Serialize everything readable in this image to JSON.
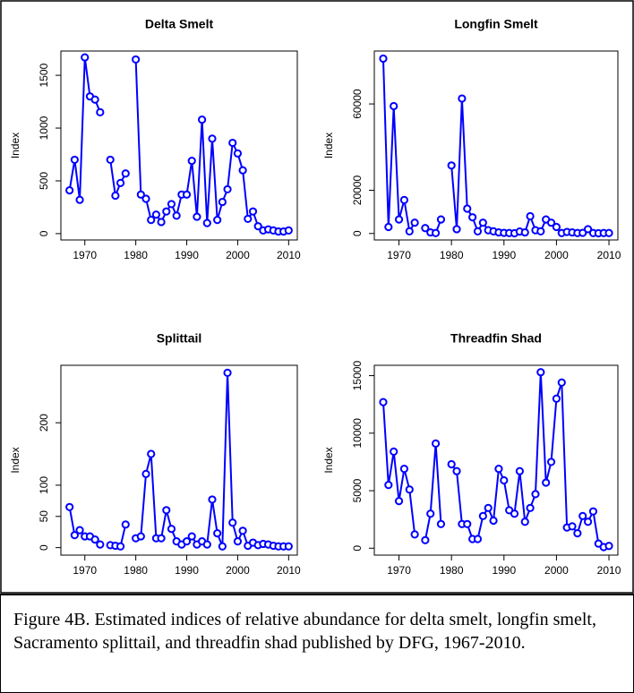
{
  "chart_data": [
    {
      "type": "line",
      "title": "Delta Smelt",
      "ylabel": "Index",
      "color": "#0000ff",
      "x": [
        1967,
        1968,
        1969,
        1970,
        1971,
        1972,
        1973,
        1974,
        1975,
        1976,
        1977,
        1978,
        1979,
        1980,
        1981,
        1982,
        1983,
        1984,
        1985,
        1986,
        1987,
        1988,
        1989,
        1990,
        1991,
        1992,
        1993,
        1994,
        1995,
        1996,
        1997,
        1998,
        1999,
        2000,
        2001,
        2002,
        2003,
        2004,
        2005,
        2006,
        2007,
        2008,
        2009,
        2010
      ],
      "values": [
        410,
        700,
        320,
        1670,
        1300,
        1270,
        1150,
        null,
        700,
        360,
        480,
        570,
        null,
        1650,
        370,
        330,
        130,
        180,
        110,
        210,
        280,
        170,
        370,
        370,
        690,
        160,
        1080,
        100,
        900,
        130,
        300,
        420,
        860,
        760,
        600,
        140,
        210,
        70,
        30,
        40,
        30,
        20,
        20,
        30
      ],
      "xlim": [
        1965.3,
        2011.7
      ],
      "ylim": [
        -60,
        1730
      ],
      "xticks": [
        1970,
        1980,
        1990,
        2000,
        2010
      ],
      "yticks": [
        0,
        500,
        1000,
        1500
      ]
    },
    {
      "type": "line",
      "title": "Longfin Smelt",
      "ylabel": "Index",
      "color": "#0000ff",
      "x": [
        1967,
        1968,
        1969,
        1970,
        1971,
        1972,
        1973,
        1974,
        1975,
        1976,
        1977,
        1978,
        1979,
        1980,
        1981,
        1982,
        1983,
        1984,
        1985,
        1986,
        1987,
        1988,
        1989,
        1990,
        1991,
        1992,
        1993,
        1994,
        1995,
        1996,
        1997,
        1998,
        1999,
        2000,
        2001,
        2002,
        2003,
        2004,
        2005,
        2006,
        2007,
        2008,
        2009,
        2010
      ],
      "values": [
        81000,
        3000,
        59000,
        6500,
        15500,
        1000,
        5000,
        null,
        2500,
        500,
        200,
        6500,
        null,
        31500,
        2000,
        62500,
        11500,
        7500,
        1000,
        5000,
        1500,
        1000,
        500,
        300,
        200,
        100,
        900,
        500,
        8000,
        1500,
        1000,
        6500,
        5000,
        3000,
        200,
        700,
        500,
        200,
        300,
        2000,
        200,
        100,
        200,
        200
      ],
      "xlim": [
        1965.3,
        2011.7
      ],
      "ylim": [
        -3000,
        84500
      ],
      "xticks": [
        1970,
        1980,
        1990,
        2000,
        2010
      ],
      "yticks": [
        0,
        20000,
        60000
      ]
    },
    {
      "type": "line",
      "title": "Splittail",
      "ylabel": "Index",
      "color": "#0000ff",
      "x": [
        1967,
        1968,
        1969,
        1970,
        1971,
        1972,
        1973,
        1974,
        1975,
        1976,
        1977,
        1978,
        1979,
        1980,
        1981,
        1982,
        1983,
        1984,
        1985,
        1986,
        1987,
        1988,
        1989,
        1990,
        1991,
        1992,
        1993,
        1994,
        1995,
        1996,
        1997,
        1998,
        1999,
        2000,
        2001,
        2002,
        2003,
        2004,
        2005,
        2006,
        2007,
        2008,
        2009,
        2010
      ],
      "values": [
        65,
        20,
        28,
        18,
        18,
        13,
        5,
        null,
        4,
        3,
        2,
        37,
        null,
        15,
        18,
        118,
        150,
        15,
        15,
        60,
        30,
        10,
        5,
        10,
        18,
        5,
        10,
        5,
        77,
        23,
        2,
        280,
        40,
        10,
        27,
        3,
        8,
        4,
        6,
        5,
        3,
        2,
        2,
        2
      ],
      "xlim": [
        1965.3,
        2011.7
      ],
      "ylim": [
        -12,
        292
      ],
      "xticks": [
        1970,
        1980,
        1990,
        2000,
        2010
      ],
      "yticks": [
        0,
        50,
        100,
        200
      ]
    },
    {
      "type": "line",
      "title": "Threadfin Shad",
      "ylabel": "Index",
      "color": "#0000ff",
      "x": [
        1967,
        1968,
        1969,
        1970,
        1971,
        1972,
        1973,
        1974,
        1975,
        1976,
        1977,
        1978,
        1979,
        1980,
        1981,
        1982,
        1983,
        1984,
        1985,
        1986,
        1987,
        1988,
        1989,
        1990,
        1991,
        1992,
        1993,
        1994,
        1995,
        1996,
        1997,
        1998,
        1999,
        2000,
        2001,
        2002,
        2003,
        2004,
        2005,
        2006,
        2007,
        2008,
        2009,
        2010
      ],
      "values": [
        12700,
        5500,
        8400,
        4100,
        6900,
        5100,
        1200,
        null,
        700,
        3000,
        9100,
        2100,
        null,
        7300,
        6700,
        2100,
        2100,
        800,
        800,
        2800,
        3500,
        2400,
        6900,
        5900,
        3300,
        3000,
        6700,
        2300,
        3500,
        4700,
        15300,
        5700,
        7500,
        13000,
        14400,
        1800,
        1900,
        1300,
        2800,
        2300,
        3200,
        400,
        100,
        200
      ],
      "xlim": [
        1965.3,
        2011.7
      ],
      "ylim": [
        -600,
        15900
      ],
      "xticks": [
        1970,
        1980,
        1990,
        2000,
        2010
      ],
      "yticks": [
        0,
        5000,
        10000,
        15000
      ]
    }
  ],
  "caption": "Figure 4B. Estimated indices of relative abundance for delta smelt, longfin smelt, Sacramento splittail, and threadfin shad published by DFG, 1967-2010."
}
